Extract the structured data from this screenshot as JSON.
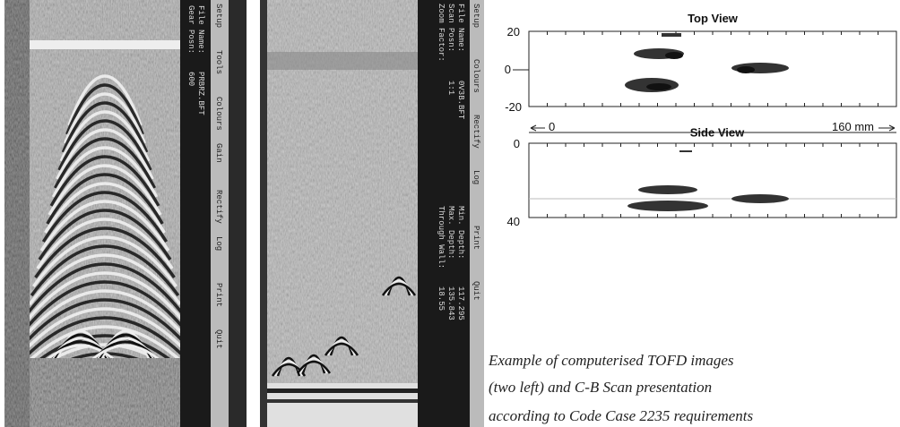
{
  "scan_images": [
    {
      "panel_labels": [
        "File Name:",
        "Gear Posn:"
      ],
      "panel_values": [
        "PRBRZ.BFT",
        "600"
      ],
      "menu": [
        "Setup",
        "Tools",
        "Colours",
        "Gain",
        "Rectify",
        "Log",
        "Print",
        "Quit"
      ]
    },
    {
      "panel_labels": [
        "File Name:",
        "Scan Posn:",
        "Zoom Factor:"
      ],
      "panel_values": [
        "0V3B.BFT",
        "1:1"
      ],
      "panel2_labels": [
        "Min. Depth:",
        "Max. Depth:",
        "Through Wall:"
      ],
      "panel2_values": [
        "117.295",
        "135.843",
        "18.55"
      ],
      "menu": [
        "Setup",
        "Colours",
        "Rectify",
        "Log",
        "Print",
        "Quit"
      ]
    }
  ],
  "cb_scan": {
    "top_view": {
      "title": "Top View",
      "y_labels": [
        "20",
        "0",
        "-20"
      ]
    },
    "x_labels": [
      "0",
      "160 mm"
    ],
    "side_view": {
      "title": "Side View",
      "y_labels": [
        "0",
        "40"
      ]
    }
  },
  "caption": [
    "Example of computerised TOFD images",
    "(two left) and C-B Scan presentation",
    "according to Code Case 2235 requirements"
  ]
}
